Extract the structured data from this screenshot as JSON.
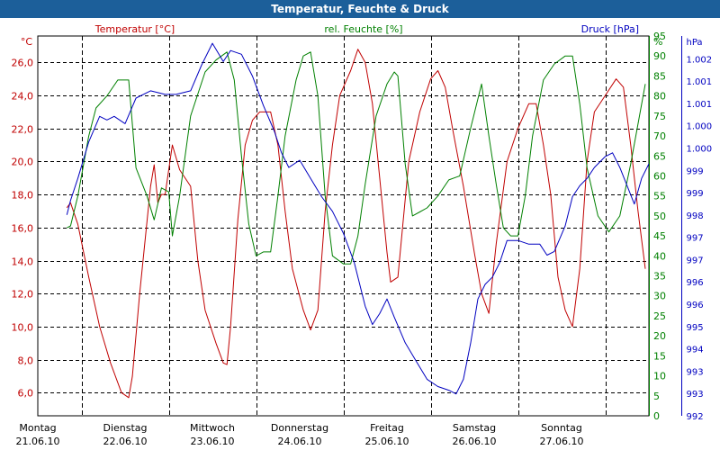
{
  "window": {
    "title": "Temperatur, Feuchte & Druck"
  },
  "colors": {
    "title_bar": "#1c5f9a",
    "temperature": "#c00000",
    "humidity": "#008000",
    "pressure": "#0000c0",
    "grid": "#000000"
  },
  "chart_data": {
    "type": "line",
    "title": "Temperatur, Feuchte & Druck",
    "grid": true,
    "x_axis": {
      "start": "21.06.10 00:00",
      "end": "28.06.10 00:00",
      "tick_labels": [
        {
          "day": "Montag",
          "date": "21.06.10"
        },
        {
          "day": "Dienstag",
          "date": "22.06.10"
        },
        {
          "day": "Mittwoch",
          "date": "23.06.10"
        },
        {
          "day": "Donnerstag",
          "date": "24.06.10"
        },
        {
          "day": "Freitag",
          "date": "25.06.10"
        },
        {
          "day": "Samstag",
          "date": "26.06.10"
        },
        {
          "day": "Sonntag",
          "date": "27.06.10"
        }
      ]
    },
    "y_axes": {
      "temperature": {
        "label": "Temperatur [°C]",
        "unit": "°C",
        "range": [
          4.6,
          27.6
        ],
        "ticks": [
          "26,0",
          "24,0",
          "22,0",
          "20,0",
          "18,0",
          "16,0",
          "14,0",
          "12,0",
          "10,0",
          "8,0",
          "6,0"
        ]
      },
      "humidity": {
        "label": "rel. Feuchte [%]",
        "unit": "%",
        "range": [
          0,
          95
        ],
        "ticks": [
          "95",
          "90",
          "85",
          "80",
          "75",
          "70",
          "65",
          "60",
          "55",
          "50",
          "45",
          "40",
          "35",
          "30",
          "25",
          "20",
          "15",
          "10",
          "5",
          "0"
        ]
      },
      "pressure": {
        "label": "Druck [hPa]",
        "unit": "hPa",
        "range": [
          992,
          1002.4
        ],
        "ticks": [
          "1.002",
          "1.001",
          "1.001",
          "1.000",
          "1.000",
          "999",
          "999",
          "998",
          "997",
          "997",
          "996",
          "996",
          "995",
          "994",
          "993",
          "993",
          "992"
        ]
      }
    },
    "series": [
      {
        "name": "Temperatur [°C]",
        "axis": "temperature",
        "points": [
          [
            "21.06.10 08:00",
            17.2
          ],
          [
            "21.06.10 09:00",
            17.5
          ],
          [
            "21.06.10 11:00",
            16.2
          ],
          [
            "21.06.10 14:00",
            13.0
          ],
          [
            "21.06.10 17:00",
            10.0
          ],
          [
            "21.06.10 20:00",
            7.8
          ],
          [
            "21.06.10 23:00",
            6.0
          ],
          [
            "22.06.10 01:00",
            5.7
          ],
          [
            "22.06.10 02:00",
            7.0
          ],
          [
            "22.06.10 04:00",
            12.0
          ],
          [
            "22.06.10 07:00",
            18.5
          ],
          [
            "22.06.10 08:00",
            19.8
          ],
          [
            "22.06.10 09:00",
            17.5
          ],
          [
            "22.06.10 10:00",
            18.0
          ],
          [
            "22.06.10 11:00",
            18.0
          ],
          [
            "22.06.10 13:00",
            21.0
          ],
          [
            "22.06.10 15:00",
            19.5
          ],
          [
            "22.06.10 18:00",
            18.5
          ],
          [
            "22.06.10 20:00",
            14.0
          ],
          [
            "22.06.10 22:00",
            11.0
          ],
          [
            "23.06.10 01:00",
            9.0
          ],
          [
            "23.06.10 03:00",
            7.8
          ],
          [
            "23.06.10 04:00",
            7.7
          ],
          [
            "23.06.10 05:00",
            10.0
          ],
          [
            "23.06.10 07:00",
            16.5
          ],
          [
            "23.06.10 09:00",
            21.0
          ],
          [
            "23.06.10 11:00",
            22.5
          ],
          [
            "23.06.10 13:00",
            23.0
          ],
          [
            "23.06.10 16:00",
            23.0
          ],
          [
            "23.06.10 18:00",
            21.0
          ],
          [
            "23.06.10 20:00",
            17.0
          ],
          [
            "23.06.10 22:00",
            13.5
          ],
          [
            "24.06.10 01:00",
            11.0
          ],
          [
            "24.06.10 03:00",
            9.8
          ],
          [
            "24.06.10 05:00",
            11.0
          ],
          [
            "24.06.10 07:00",
            17.0
          ],
          [
            "24.06.10 09:00",
            21.0
          ],
          [
            "24.06.10 11:00",
            24.0
          ],
          [
            "24.06.10 14:00",
            25.5
          ],
          [
            "24.06.10 16:00",
            26.8
          ],
          [
            "24.06.10 18:00",
            26.0
          ],
          [
            "24.06.10 20:00",
            23.5
          ],
          [
            "24.06.10 22:00",
            19.0
          ],
          [
            "25.06.10 00:00",
            14.5
          ],
          [
            "25.06.10 01:00",
            12.7
          ],
          [
            "25.06.10 03:00",
            13.0
          ],
          [
            "25.06.10 06:00",
            20.0
          ],
          [
            "25.06.10 09:00",
            23.0
          ],
          [
            "25.06.10 12:00",
            25.0
          ],
          [
            "25.06.10 14:00",
            25.5
          ],
          [
            "25.06.10 16:00",
            24.5
          ],
          [
            "25.06.10 18:00",
            22.0
          ],
          [
            "25.06.10 21:00",
            18.5
          ],
          [
            "26.06.10 00:00",
            14.5
          ],
          [
            "26.06.10 02:00",
            12.0
          ],
          [
            "26.06.10 04:00",
            10.8
          ],
          [
            "26.06.10 06:00",
            15.0
          ],
          [
            "26.06.10 09:00",
            20.0
          ],
          [
            "26.06.10 12:00",
            22.0
          ],
          [
            "26.06.10 15:00",
            23.5
          ],
          [
            "26.06.10 17:00",
            23.5
          ],
          [
            "26.06.10 19:00",
            21.0
          ],
          [
            "26.06.10 21:00",
            18.0
          ],
          [
            "26.06.10 23:00",
            13.0
          ],
          [
            "27.06.10 01:00",
            11.0
          ],
          [
            "27.06.10 03:00",
            10.0
          ],
          [
            "27.06.10 05:00",
            13.5
          ],
          [
            "27.06.10 07:00",
            20.0
          ],
          [
            "27.06.10 09:00",
            23.0
          ],
          [
            "27.06.10 12:00",
            24.0
          ],
          [
            "27.06.10 15:00",
            25.0
          ],
          [
            "27.06.10 17:00",
            24.5
          ],
          [
            "27.06.10 19:00",
            21.0
          ],
          [
            "27.06.10 21:00",
            17.0
          ],
          [
            "27.06.10 23:00",
            13.5
          ]
        ]
      },
      {
        "name": "rel. Feuchte [%]",
        "axis": "humidity",
        "points": [
          [
            "21.06.10 08:00",
            47
          ],
          [
            "21.06.10 09:00",
            47.5
          ],
          [
            "21.06.10 11:00",
            55
          ],
          [
            "21.06.10 14:00",
            70
          ],
          [
            "21.06.10 16:00",
            77
          ],
          [
            "21.06.10 19:00",
            80
          ],
          [
            "21.06.10 22:00",
            84
          ],
          [
            "22.06.10 01:00",
            84
          ],
          [
            "22.06.10 03:00",
            62
          ],
          [
            "22.06.10 06:00",
            55
          ],
          [
            "22.06.10 08:00",
            49
          ],
          [
            "22.06.10 10:00",
            57
          ],
          [
            "22.06.10 12:00",
            56
          ],
          [
            "22.06.10 13:00",
            45
          ],
          [
            "22.06.10 15:00",
            55
          ],
          [
            "22.06.10 18:00",
            75
          ],
          [
            "22.06.10 22:00",
            86
          ],
          [
            "23.06.10 01:00",
            89
          ],
          [
            "23.06.10 04:00",
            91
          ],
          [
            "23.06.10 06:00",
            84
          ],
          [
            "23.06.10 08:00",
            65
          ],
          [
            "23.06.10 10:00",
            48
          ],
          [
            "23.06.10 12:00",
            40
          ],
          [
            "23.06.10 14:00",
            41
          ],
          [
            "23.06.10 16:00",
            41
          ],
          [
            "23.06.10 18:00",
            55
          ],
          [
            "23.06.10 20:00",
            70
          ],
          [
            "23.06.10 23:00",
            84
          ],
          [
            "24.06.10 01:00",
            90
          ],
          [
            "24.06.10 03:00",
            91
          ],
          [
            "24.06.10 05:00",
            80
          ],
          [
            "24.06.10 07:00",
            55
          ],
          [
            "24.06.10 09:00",
            40
          ],
          [
            "24.06.10 12:00",
            38
          ],
          [
            "24.06.10 14:00",
            38
          ],
          [
            "24.06.10 16:00",
            45
          ],
          [
            "24.06.10 18:00",
            58
          ],
          [
            "24.06.10 21:00",
            75
          ],
          [
            "25.06.10 00:00",
            83
          ],
          [
            "25.06.10 02:00",
            86
          ],
          [
            "25.06.10 03:00",
            85
          ],
          [
            "25.06.10 05:00",
            63
          ],
          [
            "25.06.10 07:00",
            50
          ],
          [
            "25.06.10 09:00",
            51
          ],
          [
            "25.06.10 11:00",
            52
          ],
          [
            "25.06.10 14:00",
            55
          ],
          [
            "25.06.10 17:00",
            59
          ],
          [
            "25.06.10 20:00",
            60
          ],
          [
            "25.06.10 23:00",
            72
          ],
          [
            "26.06.10 02:00",
            83
          ],
          [
            "26.06.10 04:00",
            70
          ],
          [
            "26.06.10 06:00",
            58
          ],
          [
            "26.06.10 08:00",
            47
          ],
          [
            "26.06.10 10:00",
            45
          ],
          [
            "26.06.10 12:00",
            45
          ],
          [
            "26.06.10 14:00",
            55
          ],
          [
            "26.06.10 16:00",
            70
          ],
          [
            "26.06.10 19:00",
            84
          ],
          [
            "26.06.10 22:00",
            88
          ],
          [
            "27.06.10 01:00",
            90
          ],
          [
            "27.06.10 03:00",
            90
          ],
          [
            "27.06.10 05:00",
            78
          ],
          [
            "27.06.10 07:00",
            62
          ],
          [
            "27.06.10 10:00",
            50
          ],
          [
            "27.06.10 13:00",
            46
          ],
          [
            "27.06.10 16:00",
            50
          ],
          [
            "27.06.10 19:00",
            63
          ],
          [
            "27.06.10 23:00",
            83
          ]
        ]
      },
      {
        "name": "Druck [hPa]",
        "axis": "pressure",
        "points": [
          [
            "21.06.10 08:00",
            997.5
          ],
          [
            "21.06.10 09:00",
            997.9
          ],
          [
            "21.06.10 11:00",
            998.5
          ],
          [
            "21.06.10 14:00",
            999.5
          ],
          [
            "21.06.10 17:00",
            1000.2
          ],
          [
            "21.06.10 19:00",
            1000.1
          ],
          [
            "21.06.10 21:00",
            1000.2
          ],
          [
            "22.06.10 00:00",
            1000.0
          ],
          [
            "22.06.10 03:00",
            1000.7
          ],
          [
            "22.06.10 07:00",
            1000.9
          ],
          [
            "22.06.10 11:00",
            1000.8
          ],
          [
            "22.06.10 14:00",
            1000.8
          ],
          [
            "22.06.10 18:00",
            1000.9
          ],
          [
            "22.06.10 21:00",
            1001.6
          ],
          [
            "23.06.10 00:00",
            1002.2
          ],
          [
            "23.06.10 03:00",
            1001.7
          ],
          [
            "23.06.10 05:00",
            1002.0
          ],
          [
            "23.06.10 08:00",
            1001.9
          ],
          [
            "23.06.10 11:00",
            1001.3
          ],
          [
            "23.06.10 14:00",
            1000.5
          ],
          [
            "23.06.10 17:00",
            999.8
          ],
          [
            "23.06.10 19:00",
            999.2
          ],
          [
            "23.06.10 21:00",
            998.8
          ],
          [
            "24.06.10 00:00",
            999.0
          ],
          [
            "24.06.10 03:00",
            998.5
          ],
          [
            "24.06.10 06:00",
            998.0
          ],
          [
            "24.06.10 09:00",
            997.6
          ],
          [
            "24.06.10 12:00",
            997.0
          ],
          [
            "24.06.10 15:00",
            996.2
          ],
          [
            "24.06.10 18:00",
            995.0
          ],
          [
            "24.06.10 20:00",
            994.5
          ],
          [
            "24.06.10 22:00",
            994.8
          ],
          [
            "25.06.10 00:00",
            995.2
          ],
          [
            "25.06.10 02:00",
            994.7
          ],
          [
            "25.06.10 05:00",
            994.0
          ],
          [
            "25.06.10 08:00",
            993.5
          ],
          [
            "25.06.10 11:00",
            993.0
          ],
          [
            "25.06.10 14:00",
            992.8
          ],
          [
            "25.06.10 17:00",
            992.7
          ],
          [
            "25.06.10 19:00",
            992.6
          ],
          [
            "25.06.10 21:00",
            993.0
          ],
          [
            "25.06.10 23:00",
            994.0
          ],
          [
            "26.06.10 01:00",
            995.2
          ],
          [
            "26.06.10 03:00",
            995.6
          ],
          [
            "26.06.10 05:00",
            995.8
          ],
          [
            "26.06.10 07:00",
            996.2
          ],
          [
            "26.06.10 09:00",
            996.8
          ],
          [
            "26.06.10 12:00",
            996.8
          ],
          [
            "26.06.10 15:00",
            996.7
          ],
          [
            "26.06.10 18:00",
            996.7
          ],
          [
            "26.06.10 20:00",
            996.4
          ],
          [
            "26.06.10 22:00",
            996.5
          ],
          [
            "27.06.10 01:00",
            997.2
          ],
          [
            "27.06.10 03:00",
            998.0
          ],
          [
            "27.06.10 05:00",
            998.3
          ],
          [
            "27.06.10 07:00",
            998.5
          ],
          [
            "27.06.10 09:00",
            998.8
          ],
          [
            "27.06.10 12:00",
            999.1
          ],
          [
            "27.06.10 14:00",
            999.2
          ],
          [
            "27.06.10 16:00",
            998.8
          ],
          [
            "27.06.10 18:00",
            998.3
          ],
          [
            "27.06.10 20:00",
            997.8
          ],
          [
            "27.06.10 22:00",
            998.5
          ],
          [
            "28.06.10 00:00",
            998.9
          ]
        ]
      }
    ]
  }
}
